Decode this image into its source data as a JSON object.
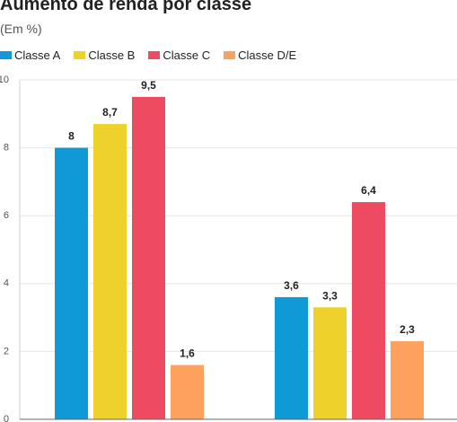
{
  "chart_data": {
    "type": "bar",
    "title": "Aumento de renda por classe",
    "subtitle": "(Em %)",
    "categories": [
      "",
      ""
    ],
    "series": [
      {
        "name": "Classe A",
        "color": "#0F9AD7",
        "values": [
          8,
          3.6
        ],
        "labels": [
          "8",
          "3,6"
        ]
      },
      {
        "name": "Classe B",
        "color": "#EFD12B",
        "values": [
          8.7,
          3.3
        ],
        "labels": [
          "8,7",
          "3,3"
        ]
      },
      {
        "name": "Classe C",
        "color": "#EE4B63",
        "values": [
          9.5,
          6.4
        ],
        "labels": [
          "9,5",
          "6,4"
        ]
      },
      {
        "name": "Classe D/E",
        "color": "#FDA15D",
        "values": [
          1.6,
          2.3
        ],
        "labels": [
          "1,6",
          "2,3"
        ]
      }
    ],
    "yticks": [
      0,
      2,
      4,
      6,
      8,
      10
    ],
    "ylim": [
      0,
      10
    ],
    "grid": true,
    "legend_position": "top-left"
  }
}
